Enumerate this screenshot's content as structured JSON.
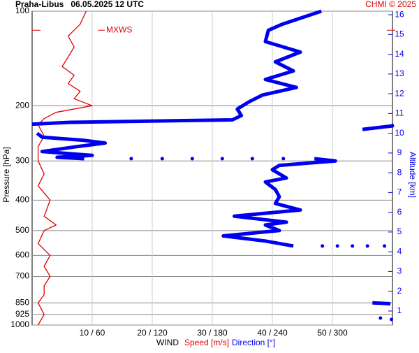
{
  "chart_data": {
    "type": "wind-profile",
    "title": "Praha-Libus   06.05.2025 12 UTC",
    "credit": "CHMI © 2025",
    "y_label": "Pressure [hPa]",
    "y2_label": "Altitude [km]",
    "x_label": "WIND",
    "log_y": true,
    "grid": true,
    "ylim": [
      1000,
      100
    ],
    "yticks": [
      100,
      200,
      300,
      400,
      500,
      600,
      700,
      850,
      925,
      1000
    ],
    "y2lim": [
      0.29,
      16.18
    ],
    "y2ticks": [
      1,
      2,
      3,
      4,
      5,
      6,
      7,
      8,
      9,
      10,
      11,
      12,
      13,
      14,
      15,
      16
    ],
    "xlim": [
      0,
      60
    ],
    "xticks": [
      {
        "value": 10,
        "label": "10 / 60"
      },
      {
        "value": 20,
        "label": "20 / 120"
      },
      {
        "value": 30,
        "label": "30 / 180"
      },
      {
        "value": 40,
        "label": "40 / 240"
      },
      {
        "value": 50,
        "label": "50 / 300"
      }
    ],
    "x2lim": [
      0,
      360
    ],
    "annotation": {
      "text": "MXWS",
      "pressure": 115
    },
    "series": [
      {
        "name": "Speed [m/s]",
        "color": "#e00000",
        "axis": "x",
        "pressure": [
          100,
          110,
          120,
          130,
          140,
          150,
          160,
          170,
          180,
          190,
          200,
          210,
          220,
          230,
          250,
          270,
          300,
          330,
          360,
          400,
          450,
          480,
          500,
          550,
          600,
          650,
          700,
          750,
          800,
          850,
          925,
          1000
        ],
        "values": [
          9,
          8,
          6,
          7,
          6,
          5,
          7,
          6,
          8,
          7,
          10,
          4,
          2,
          1,
          2,
          1,
          1,
          2,
          1,
          3,
          2,
          4,
          2,
          1,
          3,
          2,
          3,
          2,
          2,
          1,
          2,
          1
        ]
      },
      {
        "name": "Direction [°]",
        "color": "#0000ee",
        "axis": "x2",
        "pressure": [
          100,
          110,
          115,
          125,
          135,
          145,
          155,
          165,
          175,
          185,
          195,
          205,
          215,
          222,
          226,
          229,
          null,
          229,
          232,
          238,
          null,
          245,
          252,
          258,
          263,
          270,
          280,
          288,
          292,
          295,
          null,
          295,
          null,
          295,
          null,
          295,
          null,
          295,
          null,
          295,
          null,
          295,
          null,
          295,
          300,
          310,
          320,
          340,
          350,
          370,
          390,
          410,
          430,
          450,
          470,
          480,
          500,
          520,
          540,
          560,
          null,
          560,
          null,
          560,
          null,
          560,
          null,
          560,
          null,
          560,
          null,
          850,
          855,
          null,
          950,
          null,
          960
        ],
        "values": [
          289,
          250,
          236,
          233,
          268,
          243,
          261,
          233,
          264,
          230,
          216,
          205,
          209,
          200,
          38,
          0,
          null,
          359,
          360,
          330,
          null,
          5,
          10,
          52,
          73,
          45,
          10,
          60,
          25,
          52,
          null,
          99,
          null,
          130,
          null,
          160,
          null,
          190,
          null,
          220,
          null,
          251,
          null,
          282,
          303,
          247,
          240,
          254,
          233,
          243,
          247,
          243,
          268,
          202,
          254,
          233,
          247,
          191,
          233,
          261,
          null,
          290,
          null,
          305,
          null,
          320,
          null,
          335,
          null,
          352,
          null,
          340,
          358,
          null,
          348,
          null,
          359
        ]
      }
    ]
  }
}
